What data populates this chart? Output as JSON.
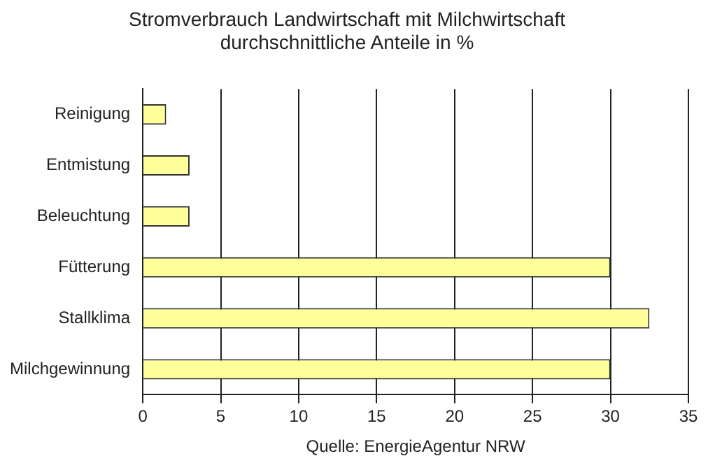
{
  "chart_data": {
    "type": "bar",
    "orientation": "horizontal",
    "title": "Stromverbrauch Landwirtschaft mit Milchwirtschaft",
    "subtitle": "durchschnittliche Anteile in %",
    "categories": [
      "Reinigung",
      "Entmistung",
      "Beleuchtung",
      "Fütterung",
      "Stallklima",
      "Milchgewinnung"
    ],
    "values": [
      1.5,
      3,
      3,
      30,
      32.5,
      30
    ],
    "color": "#ffff99",
    "xlim": [
      0,
      35
    ],
    "xticks": [
      0,
      5,
      10,
      15,
      20,
      25,
      30,
      35
    ],
    "grid": "x",
    "legend": false,
    "annotations": [
      "Quelle: EnergieAgentur NRW"
    ]
  }
}
